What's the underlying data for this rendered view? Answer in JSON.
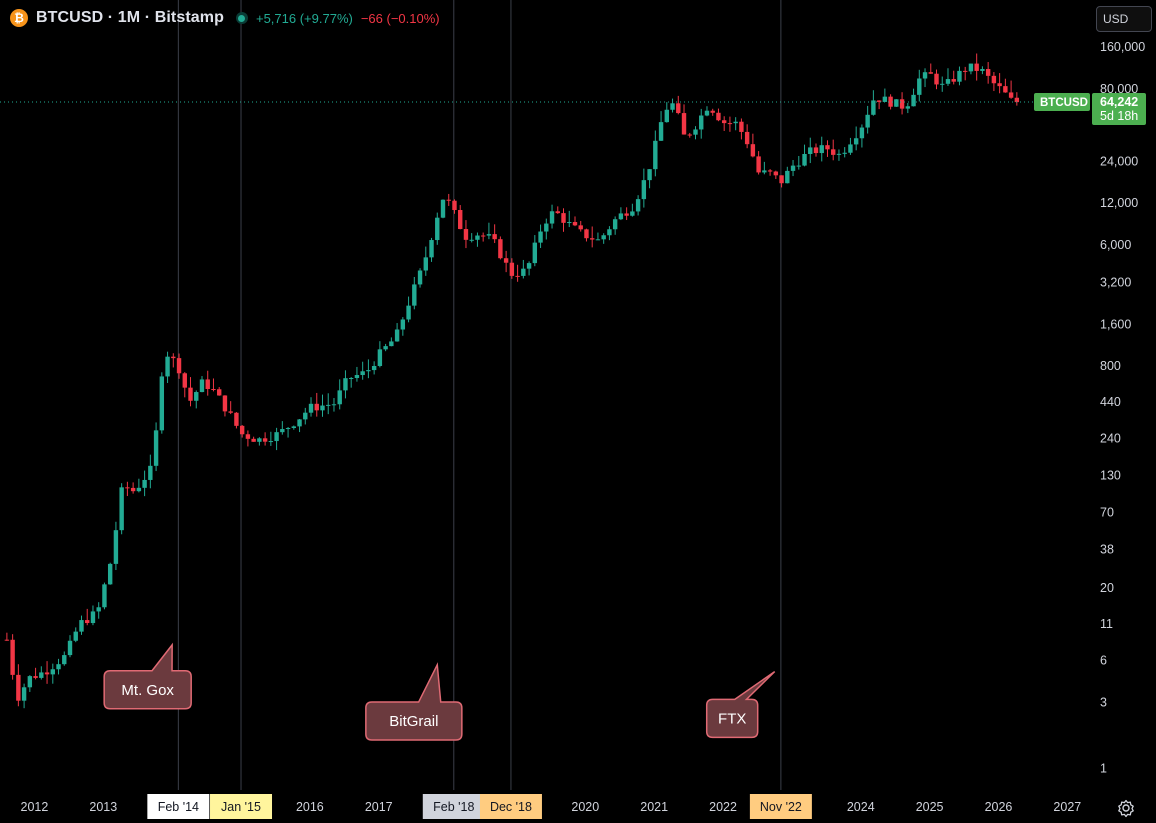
{
  "header": {
    "title": "BTCUSD · 1M · Bitstamp",
    "change_up": "+5,716 (+9.77%)",
    "change_down": "−66 (−0.10%)"
  },
  "currency_button": "USD",
  "price_label": {
    "symbol": "BTCUSD",
    "price": "64,242",
    "countdown": "5d 18h"
  },
  "colors": {
    "up": "#22ab94",
    "down": "#f23645",
    "background": "#000000",
    "label_green": "#4caf50",
    "callout": "#6b3a3e",
    "callout_border": "#e06a74"
  },
  "chart_data": {
    "type": "candlestick",
    "scale": "log",
    "title": "BTCUSD · 1M · Bitstamp",
    "ylim": [
      0.7,
      180000
    ],
    "y_ticks": [
      1,
      3,
      6,
      11,
      20,
      38,
      70,
      130,
      240,
      440,
      800,
      1600,
      3200,
      6000,
      12000,
      24000,
      80000,
      160000
    ],
    "y_tick_labels": [
      "1",
      "3",
      "6",
      "11",
      "20",
      "38",
      "70",
      "130",
      "240",
      "440",
      "800",
      "1,600",
      "3,200",
      "6,000",
      "12,000",
      "24,000",
      "80,000",
      "160,000"
    ],
    "x_ticks": [
      {
        "label": "2012",
        "t": 2012.0,
        "style": "plain"
      },
      {
        "label": "2013",
        "t": 2013.0,
        "style": "plain"
      },
      {
        "label": "Feb '14",
        "t": 2014.09,
        "style": "white"
      },
      {
        "label": "Jan '15",
        "t": 2015.0,
        "style": "yellow"
      },
      {
        "label": "2016",
        "t": 2016.0,
        "style": "plain"
      },
      {
        "label": "2017",
        "t": 2017.0,
        "style": "plain"
      },
      {
        "label": "Feb '18",
        "t": 2018.09,
        "style": "gray"
      },
      {
        "label": "Dec '18",
        "t": 2018.92,
        "style": "orange"
      },
      {
        "label": "2020",
        "t": 2020.0,
        "style": "plain"
      },
      {
        "label": "2021",
        "t": 2021.0,
        "style": "plain"
      },
      {
        "label": "2022",
        "t": 2022.0,
        "style": "plain"
      },
      {
        "label": "Nov '22",
        "t": 2022.84,
        "style": "orange"
      },
      {
        "label": "2024",
        "t": 2024.0,
        "style": "plain"
      },
      {
        "label": "2025",
        "t": 2025.0,
        "style": "plain"
      },
      {
        "label": "2026",
        "t": 2026.0,
        "style": "plain"
      },
      {
        "label": "2027",
        "t": 2027.0,
        "style": "plain"
      }
    ],
    "x_range": [
      2011.5,
      2027.3
    ],
    "event_lines": [
      2014.09,
      2015.0,
      2018.09,
      2018.92,
      2022.84
    ],
    "current_price": 64242,
    "annotations": [
      {
        "label": "Mt. Gox",
        "tip_t": 2014.0,
        "tip_y": 7.8,
        "box_t": 2013.1,
        "box_y": 3.7
      },
      {
        "label": "BitGrail",
        "tip_t": 2017.85,
        "tip_y": 5.6,
        "box_t": 2016.9,
        "box_y": 2.2
      },
      {
        "label": "FTX",
        "tip_t": 2022.75,
        "tip_y": 5.0,
        "box_t": 2021.85,
        "box_y": 2.3
      }
    ],
    "anchors": [
      [
        2011.6,
        8.5
      ],
      [
        2011.75,
        3.2
      ],
      [
        2011.92,
        4.5
      ],
      [
        2012.15,
        5.0
      ],
      [
        2012.45,
        6.5
      ],
      [
        2012.65,
        11
      ],
      [
        2012.92,
        13.5
      ],
      [
        2013.12,
        33
      ],
      [
        2013.28,
        110
      ],
      [
        2013.45,
        100
      ],
      [
        2013.72,
        150
      ],
      [
        2013.88,
        1050
      ],
      [
        2014.09,
        800
      ],
      [
        2014.25,
        440
      ],
      [
        2014.45,
        620
      ],
      [
        2014.62,
        520
      ],
      [
        2014.85,
        350
      ],
      [
        2015.0,
        260
      ],
      [
        2015.25,
        235
      ],
      [
        2015.55,
        260
      ],
      [
        2015.82,
        330
      ],
      [
        2016.0,
        400
      ],
      [
        2016.35,
        430
      ],
      [
        2016.55,
        650
      ],
      [
        2016.82,
        720
      ],
      [
        2017.0,
        960
      ],
      [
        2017.25,
        1300
      ],
      [
        2017.45,
        2400
      ],
      [
        2017.65,
        4300
      ],
      [
        2017.85,
        9800
      ],
      [
        2017.95,
        13800
      ],
      [
        2018.09,
        10300
      ],
      [
        2018.25,
        6900
      ],
      [
        2018.45,
        7200
      ],
      [
        2018.65,
        6600
      ],
      [
        2018.92,
        3700
      ],
      [
        2019.15,
        3900
      ],
      [
        2019.38,
        8500
      ],
      [
        2019.55,
        10500
      ],
      [
        2019.78,
        8300
      ],
      [
        2019.95,
        7200
      ],
      [
        2020.2,
        6400
      ],
      [
        2020.45,
        9300
      ],
      [
        2020.7,
        11500
      ],
      [
        2020.9,
        19500
      ],
      [
        2021.0,
        29000
      ],
      [
        2021.15,
        57000
      ],
      [
        2021.3,
        63000
      ],
      [
        2021.42,
        36000
      ],
      [
        2021.55,
        40000
      ],
      [
        2021.78,
        61000
      ],
      [
        2021.85,
        57000
      ],
      [
        2022.0,
        46000
      ],
      [
        2022.2,
        45000
      ],
      [
        2022.4,
        30000
      ],
      [
        2022.5,
        20000
      ],
      [
        2022.7,
        19500
      ],
      [
        2022.84,
        17000
      ],
      [
        2023.0,
        22000
      ],
      [
        2023.25,
        28000
      ],
      [
        2023.5,
        30000
      ],
      [
        2023.7,
        26500
      ],
      [
        2023.85,
        34000
      ],
      [
        2024.0,
        42000
      ],
      [
        2024.2,
        70000
      ],
      [
        2024.45,
        64000
      ],
      [
        2024.65,
        59000
      ],
      [
        2024.85,
        94000
      ],
      [
        2025.0,
        102000
      ],
      [
        2025.2,
        82000
      ],
      [
        2025.35,
        95000
      ],
      [
        2025.55,
        115000
      ],
      [
        2025.75,
        109000
      ],
      [
        2025.92,
        88000
      ],
      [
        2026.05,
        78000
      ],
      [
        2026.18,
        66000
      ],
      [
        2026.28,
        64242
      ]
    ]
  }
}
